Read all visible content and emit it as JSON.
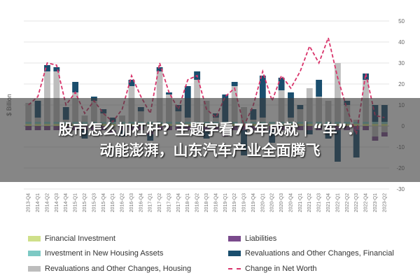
{
  "chart_data": {
    "type": "bar",
    "stacked": true,
    "ylabel": "$ Billion",
    "ylim": [
      -30,
      50
    ],
    "yticks": [
      50,
      40,
      30,
      20,
      10,
      0,
      -10,
      -20,
      -30
    ],
    "grid": true,
    "legend_position": "bottom",
    "categories": [
      "2013-Q4",
      "2014-Q1",
      "2014-Q2",
      "2014-Q3",
      "2014-Q4",
      "2015-Q1",
      "2015-Q2",
      "2015-Q3",
      "2015-Q4",
      "2016-Q1",
      "2016-Q2",
      "2016-Q3",
      "2016-Q4",
      "2017-Q1",
      "2017-Q2",
      "2017-Q3",
      "2017-Q4",
      "2018-Q1",
      "2018-Q2",
      "2018-Q3",
      "2018-Q4",
      "2019-Q1",
      "2019-Q2",
      "2019-Q3",
      "2019-Q4",
      "2020-Q1",
      "2020-Q2",
      "2020-Q3",
      "2020-Q4",
      "2021-Q1",
      "2021-Q2",
      "2021-Q3",
      "2021-Q4",
      "2022-Q1",
      "2022-Q2",
      "2022-Q3",
      "2022-Q4",
      "2023-Q1",
      "2023-Q2"
    ],
    "series": [
      {
        "name": "Financial Investment",
        "color": "#cfe08a",
        "kind": "bar",
        "values": [
          1,
          1,
          1,
          1,
          1,
          1,
          1,
          1,
          1,
          1,
          1,
          1,
          1,
          1,
          1,
          1,
          1,
          1,
          1,
          1,
          1,
          1,
          1,
          1,
          1,
          1,
          1,
          1,
          1,
          1,
          1,
          1,
          1,
          1,
          1,
          1,
          1,
          1,
          1
        ]
      },
      {
        "name": "Investment in New Housing Assets",
        "color": "#7dc9c4",
        "kind": "bar",
        "values": [
          1,
          1,
          1,
          1,
          1,
          1,
          1,
          1,
          1,
          1,
          1,
          1,
          1,
          1,
          1,
          1,
          1,
          1,
          1,
          1,
          1,
          1,
          1,
          1,
          1,
          1,
          1,
          1,
          1,
          1,
          1,
          1,
          1,
          1,
          1,
          1,
          1,
          1,
          1
        ]
      },
      {
        "name": "Revaluations and Other Changes, Housing",
        "color": "#bdbdbd",
        "kind": "bar",
        "values": [
          9,
          2,
          24,
          24,
          1,
          14,
          3,
          10,
          4,
          -2,
          3,
          17,
          5,
          -2,
          24,
          13,
          5,
          2,
          20,
          10,
          2,
          -3,
          17,
          7,
          1,
          2,
          0,
          15,
          2,
          6,
          16,
          12,
          10,
          28,
          8,
          1,
          20,
          -5,
          -3
        ]
      },
      {
        "name": "Liabilities",
        "color": "#7a4a8c",
        "kind": "bar",
        "values": [
          -2,
          -2,
          -2,
          -2,
          -2,
          -2,
          -2,
          -2,
          -2,
          -2,
          -2,
          -2,
          -2,
          -2,
          -2,
          -2,
          -2,
          -2,
          -2,
          -2,
          -2,
          -2,
          -2,
          -2,
          -2,
          -2,
          -2,
          -2,
          -2,
          -2,
          -2,
          -2,
          -2,
          -2,
          -2,
          -2,
          -2,
          -2,
          -2
        ]
      },
      {
        "name": "Revaluations and Other Changes, Financial",
        "color": "#1a4e6e",
        "kind": "bar",
        "values": [
          0,
          8,
          3,
          2,
          6,
          5,
          -4,
          2,
          2,
          2,
          -3,
          3,
          2,
          -3,
          2,
          1,
          3,
          15,
          4,
          -4,
          2,
          13,
          2,
          -12,
          5,
          20,
          -6,
          6,
          12,
          2,
          -2,
          8,
          -4,
          -15,
          2,
          -13,
          3,
          8,
          8
        ]
      },
      {
        "name": "Change in Net Worth",
        "color": "#d9346b",
        "kind": "line",
        "values": [
          10,
          14,
          30,
          29,
          10,
          16,
          6,
          12,
          6,
          2,
          8,
          24,
          14,
          6,
          30,
          16,
          8,
          22,
          24,
          8,
          4,
          14,
          18,
          0,
          10,
          26,
          12,
          24,
          18,
          26,
          38,
          30,
          42,
          23,
          8,
          -4,
          25,
          5,
          4
        ]
      }
    ]
  },
  "headline": {
    "line1": "股市怎么加杠杆? 主题字看75年成就｜“车”：",
    "line2": "动能澎湃，山东汽车产业全面腾飞"
  },
  "legend": [
    {
      "label": "Financial Investment",
      "color": "#cfe08a",
      "style": "box"
    },
    {
      "label": "Liabilities",
      "color": "#7a4a8c",
      "style": "box"
    },
    {
      "label": "Investment in New Housing Assets",
      "color": "#7dc9c4",
      "style": "box"
    },
    {
      "label": "Revaluations and Other Changes, Financial",
      "color": "#1a4e6e",
      "style": "box"
    },
    {
      "label": "Revaluations and Other Changes, Housing",
      "color": "#bdbdbd",
      "style": "box"
    },
    {
      "label": "Change in Net Worth",
      "color": "#d9346b",
      "style": "dash"
    }
  ]
}
